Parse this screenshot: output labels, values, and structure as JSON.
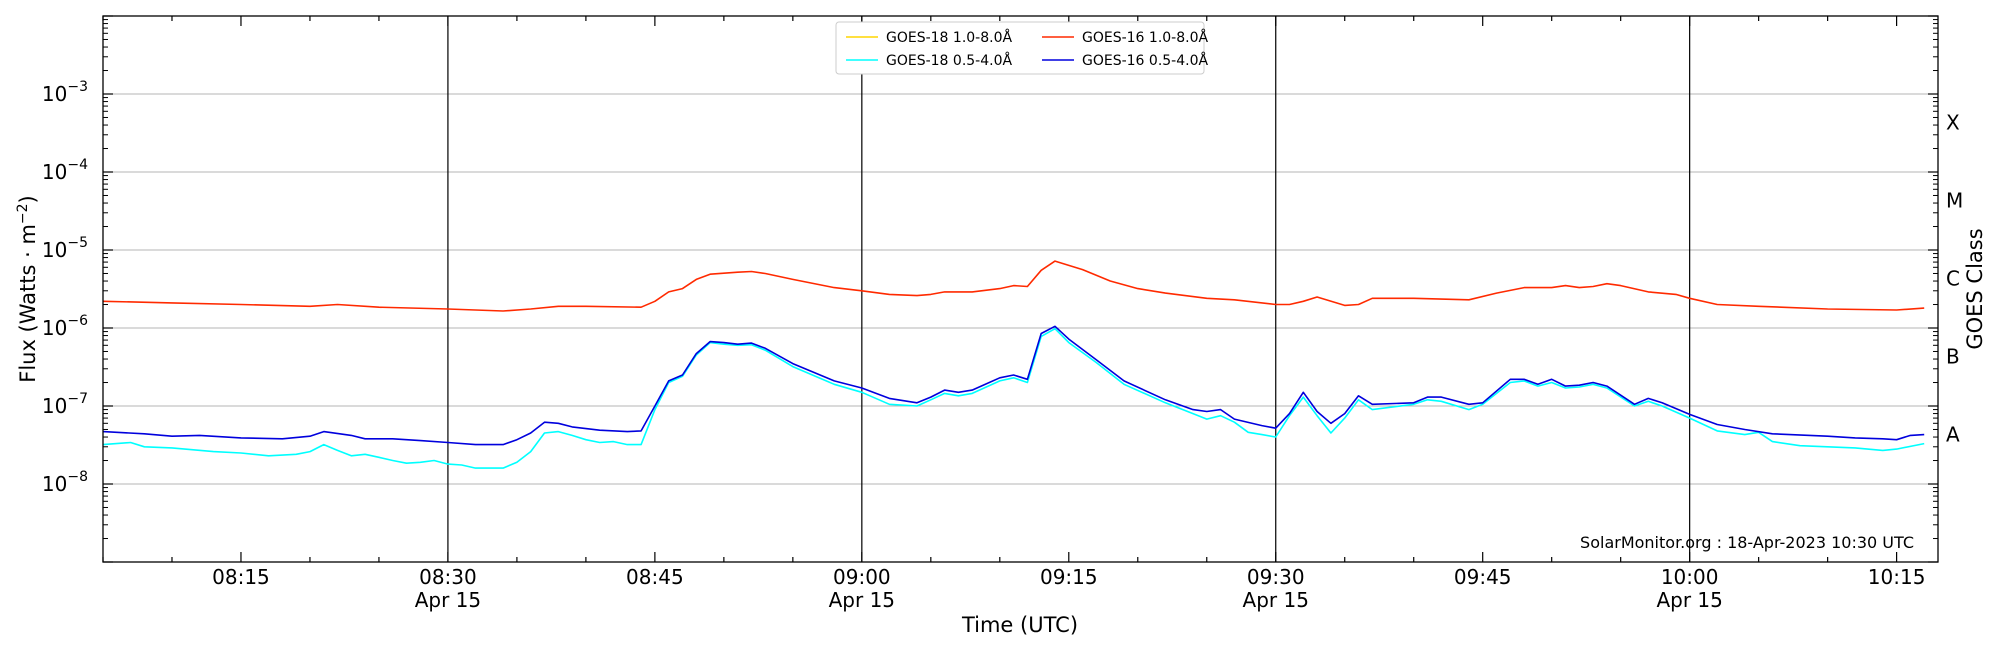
{
  "chart_data": {
    "type": "line",
    "title": "",
    "xlabel": "Time (UTC)",
    "ylabel_main": "Flux (Watts · m",
    "ylabel_exp": "−2",
    "ylabel_close": ")",
    "y2label": "GOES Class",
    "yscale": "log",
    "ylim": [
      1e-09,
      0.01
    ],
    "xlim": [
      "2023-04-15T08:05:00",
      "2023-04-15T10:18:00"
    ],
    "grid": "horizontal",
    "legend_position": "top-center",
    "credit": "SolarMonitor.org : 18-Apr-2023 10:30 UTC",
    "yticks": [
      {
        "value": 1e-08,
        "base": "10",
        "exp": "−8"
      },
      {
        "value": 1e-07,
        "base": "10",
        "exp": "−7"
      },
      {
        "value": 1e-06,
        "base": "10",
        "exp": "−6"
      },
      {
        "value": 1e-05,
        "base": "10",
        "exp": "−5"
      },
      {
        "value": 0.0001,
        "base": "10",
        "exp": "−4"
      },
      {
        "value": 0.001,
        "base": "10",
        "exp": "−3"
      }
    ],
    "class_labels": [
      {
        "label": "A",
        "value": 4.3e-08
      },
      {
        "label": "B",
        "value": 4.3e-07
      },
      {
        "label": "C",
        "value": 4.3e-06
      },
      {
        "label": "M",
        "value": 4.3e-05
      },
      {
        "label": "X",
        "value": 0.00043
      }
    ],
    "xticks": [
      {
        "time": "08:15",
        "date": ""
      },
      {
        "time": "08:30",
        "date": "Apr 15"
      },
      {
        "time": "08:45",
        "date": ""
      },
      {
        "time": "09:00",
        "date": "Apr 15"
      },
      {
        "time": "09:15",
        "date": ""
      },
      {
        "time": "09:30",
        "date": "Apr 15"
      },
      {
        "time": "09:45",
        "date": ""
      },
      {
        "time": "10:00",
        "date": "Apr 15"
      },
      {
        "time": "10:15",
        "date": ""
      }
    ],
    "vlines": [
      "08:30",
      "09:00",
      "09:30",
      "10:00"
    ],
    "legend": [
      {
        "name": "GOES-18 1.0-8.0Å",
        "color": "#ffd500"
      },
      {
        "name": "GOES-16 1.0-8.0Å",
        "color": "#ff2a00"
      },
      {
        "name": "GOES-18 0.5-4.0Å",
        "color": "#00ffff"
      },
      {
        "name": "GOES-16 0.5-4.0Å",
        "color": "#0000dd"
      }
    ],
    "series": [
      {
        "name": "GOES-18 1.0-8.0Å",
        "color": "#ffd500",
        "points": []
      },
      {
        "name": "GOES-16 1.0-8.0Å",
        "color": "#ff2a00",
        "points": [
          [
            "08:05",
            2.2e-06
          ],
          [
            "08:10",
            2.1e-06
          ],
          [
            "08:15",
            2e-06
          ],
          [
            "08:20",
            1.9e-06
          ],
          [
            "08:22",
            2e-06
          ],
          [
            "08:25",
            1.85e-06
          ],
          [
            "08:30",
            1.75e-06
          ],
          [
            "08:34",
            1.65e-06
          ],
          [
            "08:36",
            1.75e-06
          ],
          [
            "08:38",
            1.9e-06
          ],
          [
            "08:40",
            1.9e-06
          ],
          [
            "08:44",
            1.85e-06
          ],
          [
            "08:45",
            2.2e-06
          ],
          [
            "08:46",
            2.9e-06
          ],
          [
            "08:47",
            3.2e-06
          ],
          [
            "08:48",
            4.2e-06
          ],
          [
            "08:49",
            4.9e-06
          ],
          [
            "08:51",
            5.2e-06
          ],
          [
            "08:52",
            5.3e-06
          ],
          [
            "08:53",
            5e-06
          ],
          [
            "08:55",
            4.2e-06
          ],
          [
            "08:58",
            3.3e-06
          ],
          [
            "09:00",
            3e-06
          ],
          [
            "09:02",
            2.7e-06
          ],
          [
            "09:04",
            2.6e-06
          ],
          [
            "09:05",
            2.7e-06
          ],
          [
            "09:06",
            2.9e-06
          ],
          [
            "09:08",
            2.9e-06
          ],
          [
            "09:10",
            3.2e-06
          ],
          [
            "09:11",
            3.5e-06
          ],
          [
            "09:12",
            3.4e-06
          ],
          [
            "09:13",
            5.5e-06
          ],
          [
            "09:14",
            7.2e-06
          ],
          [
            "09:16",
            5.6e-06
          ],
          [
            "09:18",
            4e-06
          ],
          [
            "09:20",
            3.2e-06
          ],
          [
            "09:22",
            2.8e-06
          ],
          [
            "09:25",
            2.4e-06
          ],
          [
            "09:27",
            2.3e-06
          ],
          [
            "09:30",
            2e-06
          ],
          [
            "09:31",
            2e-06
          ],
          [
            "09:32",
            2.2e-06
          ],
          [
            "09:33",
            2.5e-06
          ],
          [
            "09:35",
            1.95e-06
          ],
          [
            "09:36",
            2e-06
          ],
          [
            "09:37",
            2.4e-06
          ],
          [
            "09:40",
            2.4e-06
          ],
          [
            "09:44",
            2.3e-06
          ],
          [
            "09:46",
            2.8e-06
          ],
          [
            "09:48",
            3.3e-06
          ],
          [
            "09:50",
            3.3e-06
          ],
          [
            "09:51",
            3.5e-06
          ],
          [
            "09:52",
            3.3e-06
          ],
          [
            "09:53",
            3.4e-06
          ],
          [
            "09:54",
            3.7e-06
          ],
          [
            "09:55",
            3.5e-06
          ],
          [
            "09:57",
            2.9e-06
          ],
          [
            "09:59",
            2.7e-06
          ],
          [
            "10:00",
            2.4e-06
          ],
          [
            "10:02",
            2e-06
          ],
          [
            "10:05",
            1.9e-06
          ],
          [
            "10:10",
            1.75e-06
          ],
          [
            "10:15",
            1.7e-06
          ],
          [
            "10:17",
            1.8e-06
          ]
        ]
      },
      {
        "name": "GOES-18 0.5-4.0Å",
        "color": "#00ffff",
        "points": [
          [
            "08:05",
            3.2e-08
          ],
          [
            "08:07",
            3.4e-08
          ],
          [
            "08:08",
            3e-08
          ],
          [
            "08:10",
            2.9e-08
          ],
          [
            "08:13",
            2.6e-08
          ],
          [
            "08:15",
            2.5e-08
          ],
          [
            "08:17",
            2.3e-08
          ],
          [
            "08:19",
            2.4e-08
          ],
          [
            "08:20",
            2.6e-08
          ],
          [
            "08:21",
            3.2e-08
          ],
          [
            "08:22",
            2.7e-08
          ],
          [
            "08:23",
            2.3e-08
          ],
          [
            "08:24",
            2.4e-08
          ],
          [
            "08:25",
            2.2e-08
          ],
          [
            "08:26",
            2e-08
          ],
          [
            "08:27",
            1.85e-08
          ],
          [
            "08:28",
            1.9e-08
          ],
          [
            "08:29",
            2e-08
          ],
          [
            "08:30",
            1.8e-08
          ],
          [
            "08:31",
            1.75e-08
          ],
          [
            "08:32",
            1.6e-08
          ],
          [
            "08:34",
            1.6e-08
          ],
          [
            "08:35",
            1.9e-08
          ],
          [
            "08:36",
            2.6e-08
          ],
          [
            "08:37",
            4.5e-08
          ],
          [
            "08:38",
            4.7e-08
          ],
          [
            "08:39",
            4.2e-08
          ],
          [
            "08:40",
            3.7e-08
          ],
          [
            "08:41",
            3.4e-08
          ],
          [
            "08:42",
            3.5e-08
          ],
          [
            "08:43",
            3.2e-08
          ],
          [
            "08:44",
            3.2e-08
          ],
          [
            "08:45",
            9e-08
          ],
          [
            "08:46",
            2e-07
          ],
          [
            "08:47",
            2.4e-07
          ],
          [
            "08:48",
            4.5e-07
          ],
          [
            "08:49",
            6.5e-07
          ],
          [
            "08:50",
            6.2e-07
          ],
          [
            "08:51",
            6e-07
          ],
          [
            "08:52",
            6.1e-07
          ],
          [
            "08:53",
            5.2e-07
          ],
          [
            "08:55",
            3.2e-07
          ],
          [
            "08:58",
            1.9e-07
          ],
          [
            "09:00",
            1.5e-07
          ],
          [
            "09:02",
            1.05e-07
          ],
          [
            "09:04",
            1e-07
          ],
          [
            "09:05",
            1.2e-07
          ],
          [
            "09:06",
            1.45e-07
          ],
          [
            "09:07",
            1.35e-07
          ],
          [
            "09:08",
            1.45e-07
          ],
          [
            "09:10",
            2.1e-07
          ],
          [
            "09:11",
            2.3e-07
          ],
          [
            "09:12",
            2e-07
          ],
          [
            "09:13",
            7.8e-07
          ],
          [
            "09:14",
            9.8e-07
          ],
          [
            "09:15",
            6.5e-07
          ],
          [
            "09:17",
            3.6e-07
          ],
          [
            "09:19",
            1.9e-07
          ],
          [
            "09:22",
            1.1e-07
          ],
          [
            "09:24",
            8e-08
          ],
          [
            "09:25",
            6.8e-08
          ],
          [
            "09:26",
            7.5e-08
          ],
          [
            "09:27",
            6.2e-08
          ],
          [
            "09:28",
            4.6e-08
          ],
          [
            "09:29",
            4.3e-08
          ],
          [
            "09:30",
            4e-08
          ],
          [
            "09:31",
            7.5e-08
          ],
          [
            "09:32",
            1.3e-07
          ],
          [
            "09:33",
            7.5e-08
          ],
          [
            "09:34",
            4.5e-08
          ],
          [
            "09:35",
            7e-08
          ],
          [
            "09:36",
            1.2e-07
          ],
          [
            "09:37",
            9e-08
          ],
          [
            "09:40",
            1.05e-07
          ],
          [
            "09:41",
            1.2e-07
          ],
          [
            "09:42",
            1.15e-07
          ],
          [
            "09:44",
            9e-08
          ],
          [
            "09:45",
            1.05e-07
          ],
          [
            "09:47",
            2e-07
          ],
          [
            "09:48",
            2.1e-07
          ],
          [
            "09:49",
            1.8e-07
          ],
          [
            "09:50",
            2e-07
          ],
          [
            "09:51",
            1.7e-07
          ],
          [
            "09:52",
            1.75e-07
          ],
          [
            "09:53",
            1.9e-07
          ],
          [
            "09:54",
            1.7e-07
          ],
          [
            "09:56",
            1e-07
          ],
          [
            "09:57",
            1.15e-07
          ],
          [
            "09:58",
            1e-07
          ],
          [
            "10:00",
            7e-08
          ],
          [
            "10:02",
            4.8e-08
          ],
          [
            "10:04",
            4.3e-08
          ],
          [
            "10:05",
            4.6e-08
          ],
          [
            "10:06",
            3.5e-08
          ],
          [
            "10:08",
            3.1e-08
          ],
          [
            "10:10",
            3e-08
          ],
          [
            "10:12",
            2.9e-08
          ],
          [
            "10:14",
            2.7e-08
          ],
          [
            "10:15",
            2.8e-08
          ],
          [
            "10:17",
            3.3e-08
          ]
        ]
      },
      {
        "name": "GOES-16 0.5-4.0Å",
        "color": "#0000dd",
        "points": [
          [
            "08:05",
            4.7e-08
          ],
          [
            "08:08",
            4.4e-08
          ],
          [
            "08:10",
            4.1e-08
          ],
          [
            "08:12",
            4.2e-08
          ],
          [
            "08:15",
            3.9e-08
          ],
          [
            "08:18",
            3.8e-08
          ],
          [
            "08:20",
            4.1e-08
          ],
          [
            "08:21",
            4.7e-08
          ],
          [
            "08:23",
            4.2e-08
          ],
          [
            "08:24",
            3.8e-08
          ],
          [
            "08:26",
            3.8e-08
          ],
          [
            "08:28",
            3.6e-08
          ],
          [
            "08:30",
            3.4e-08
          ],
          [
            "08:32",
            3.2e-08
          ],
          [
            "08:34",
            3.2e-08
          ],
          [
            "08:35",
            3.7e-08
          ],
          [
            "08:36",
            4.5e-08
          ],
          [
            "08:37",
            6.2e-08
          ],
          [
            "08:38",
            6e-08
          ],
          [
            "08:39",
            5.4e-08
          ],
          [
            "08:41",
            4.9e-08
          ],
          [
            "08:43",
            4.7e-08
          ],
          [
            "08:44",
            4.8e-08
          ],
          [
            "08:45",
            1e-07
          ],
          [
            "08:46",
            2.1e-07
          ],
          [
            "08:47",
            2.5e-07
          ],
          [
            "08:48",
            4.7e-07
          ],
          [
            "08:49",
            6.7e-07
          ],
          [
            "08:50",
            6.5e-07
          ],
          [
            "08:51",
            6.2e-07
          ],
          [
            "08:52",
            6.4e-07
          ],
          [
            "08:53",
            5.5e-07
          ],
          [
            "08:55",
            3.5e-07
          ],
          [
            "08:58",
            2.1e-07
          ],
          [
            "09:00",
            1.7e-07
          ],
          [
            "09:02",
            1.25e-07
          ],
          [
            "09:04",
            1.1e-07
          ],
          [
            "09:05",
            1.3e-07
          ],
          [
            "09:06",
            1.6e-07
          ],
          [
            "09:07",
            1.5e-07
          ],
          [
            "09:08",
            1.6e-07
          ],
          [
            "09:10",
            2.3e-07
          ],
          [
            "09:11",
            2.5e-07
          ],
          [
            "09:12",
            2.2e-07
          ],
          [
            "09:13",
            8.5e-07
          ],
          [
            "09:14",
            1.05e-06
          ],
          [
            "09:15",
            7.2e-07
          ],
          [
            "09:17",
            3.9e-07
          ],
          [
            "09:19",
            2.1e-07
          ],
          [
            "09:22",
            1.2e-07
          ],
          [
            "09:24",
            9e-08
          ],
          [
            "09:25",
            8.5e-08
          ],
          [
            "09:26",
            9e-08
          ],
          [
            "09:27",
            6.8e-08
          ],
          [
            "09:29",
            5.6e-08
          ],
          [
            "09:30",
            5.2e-08
          ],
          [
            "09:31",
            8e-08
          ],
          [
            "09:32",
            1.5e-07
          ],
          [
            "09:33",
            8.5e-08
          ],
          [
            "09:34",
            6e-08
          ],
          [
            "09:35",
            8e-08
          ],
          [
            "09:36",
            1.35e-07
          ],
          [
            "09:37",
            1.05e-07
          ],
          [
            "09:40",
            1.1e-07
          ],
          [
            "09:41",
            1.3e-07
          ],
          [
            "09:42",
            1.3e-07
          ],
          [
            "09:44",
            1.05e-07
          ],
          [
            "09:45",
            1.1e-07
          ],
          [
            "09:47",
            2.2e-07
          ],
          [
            "09:48",
            2.2e-07
          ],
          [
            "09:49",
            1.9e-07
          ],
          [
            "09:50",
            2.2e-07
          ],
          [
            "09:51",
            1.8e-07
          ],
          [
            "09:52",
            1.85e-07
          ],
          [
            "09:53",
            2e-07
          ],
          [
            "09:54",
            1.8e-07
          ],
          [
            "09:56",
            1.05e-07
          ],
          [
            "09:57",
            1.25e-07
          ],
          [
            "09:58",
            1.1e-07
          ],
          [
            "10:00",
            7.8e-08
          ],
          [
            "10:02",
            5.8e-08
          ],
          [
            "10:04",
            5e-08
          ],
          [
            "10:06",
            4.4e-08
          ],
          [
            "10:10",
            4.1e-08
          ],
          [
            "10:12",
            3.9e-08
          ],
          [
            "10:14",
            3.8e-08
          ],
          [
            "10:15",
            3.7e-08
          ],
          [
            "10:16",
            4.2e-08
          ],
          [
            "10:17",
            4.3e-08
          ]
        ]
      }
    ]
  }
}
